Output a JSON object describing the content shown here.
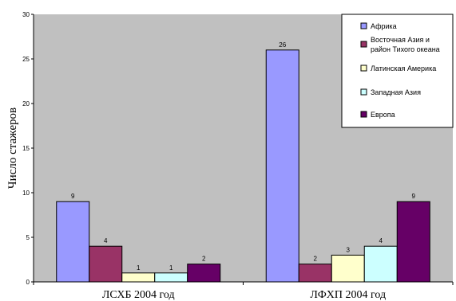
{
  "chart_data": {
    "type": "bar",
    "title": "",
    "xlabel": "",
    "ylabel": "Число стажеров",
    "ylim": [
      0,
      30
    ],
    "yticks": [
      0,
      5,
      10,
      15,
      20,
      25,
      30
    ],
    "grid": false,
    "legend_position": "top-right",
    "categories": [
      "ЛСХБ 2004 год",
      "ЛФХП 2004 год"
    ],
    "series": [
      {
        "name": "Африка",
        "color": "#9999FF",
        "values": [
          9,
          26
        ]
      },
      {
        "name": [
          "Восточная Азия и",
          "район Тихого океана"
        ],
        "color": "#993366",
        "values": [
          4,
          2
        ]
      },
      {
        "name": "Латинская Америка",
        "color": "#FFFFCC",
        "values": [
          1,
          3
        ]
      },
      {
        "name": "Западная Азия",
        "color": "#CCFFFF",
        "values": [
          1,
          4
        ]
      },
      {
        "name": "Европа",
        "color": "#660066",
        "values": [
          2,
          9
        ]
      }
    ],
    "plot_background": "#C0C0C0"
  }
}
